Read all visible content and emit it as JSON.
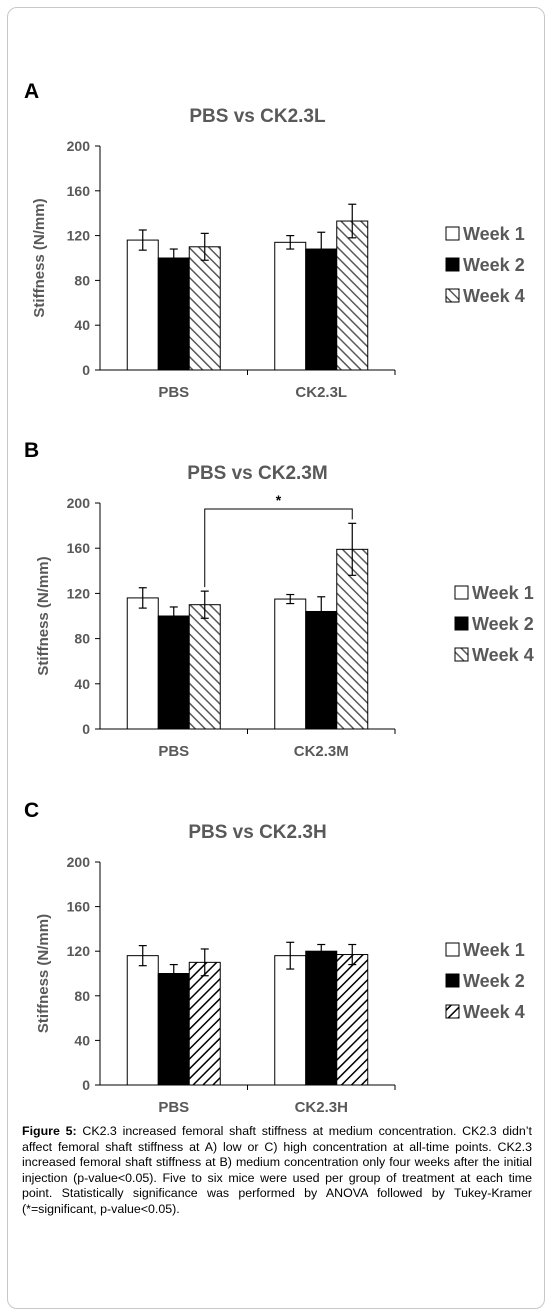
{
  "panels": [
    {
      "letter": "A"
    },
    {
      "letter": "B"
    },
    {
      "letter": "C"
    }
  ],
  "caption": {
    "label": "Figure 5:",
    "text": " CK2.3 increased femoral shaft stiffness at medium concentration. CK2.3 didn’t affect femoral shaft stiffness at A) low or C) high concentration at all-time points. CK2.3 increased femoral shaft stiffness at B) medium concentration only four weeks after the initial injection (p-value<0.05). Five to six mice were used per group of treatment at each time point. Statistically significance was performed by ANOVA followed by Tukey-Kramer (*=significant, p-value<0.05)."
  },
  "colors": {
    "week1": "#ffffff",
    "week2": "#000000",
    "week4_hatch": "#595959",
    "text": "#595959",
    "axis": "#000000"
  },
  "chart_data": [
    {
      "type": "bar",
      "title": "PBS vs CK2.3L",
      "categories": [
        "PBS",
        "CK2.3L"
      ],
      "ylabel": "Stiffness (N/mm)",
      "ylim": [
        0,
        200
      ],
      "yticks": [
        "0",
        "40",
        "80",
        "120",
        "160",
        "200"
      ],
      "legend_placement": "right",
      "series": [
        {
          "name": "Week 1",
          "values": [
            116,
            114
          ],
          "errors": [
            9,
            6
          ],
          "fill": "white"
        },
        {
          "name": "Week 2",
          "values": [
            100,
            108
          ],
          "errors": [
            8,
            15
          ],
          "fill": "black"
        },
        {
          "name": "Week 4",
          "values": [
            110,
            133
          ],
          "errors": [
            12,
            15
          ],
          "fill": "hatch-forward"
        }
      ]
    },
    {
      "type": "bar",
      "title": "PBS vs CK2.3M",
      "categories": [
        "PBS",
        "CK2.3M"
      ],
      "ylabel": "Stiffness (N/mm)",
      "ylim": [
        0,
        200
      ],
      "yticks": [
        "0",
        "40",
        "80",
        "120",
        "160",
        "200"
      ],
      "legend_placement": "right",
      "significance": {
        "label": "*",
        "from": "PBS Week 4",
        "to": "CK2.3M Week 4"
      },
      "series": [
        {
          "name": "Week 1",
          "values": [
            116,
            115
          ],
          "errors": [
            9,
            4
          ],
          "fill": "white"
        },
        {
          "name": "Week 2",
          "values": [
            100,
            104
          ],
          "errors": [
            8,
            13
          ],
          "fill": "black"
        },
        {
          "name": "Week 4",
          "values": [
            110,
            159
          ],
          "errors": [
            12,
            23
          ],
          "fill": "hatch-forward"
        }
      ]
    },
    {
      "type": "bar",
      "title": "PBS vs CK2.3H",
      "categories": [
        "PBS",
        "CK2.3H"
      ],
      "ylabel": "Stiffness (N/mm)",
      "ylim": [
        0,
        200
      ],
      "yticks": [
        "0",
        "40",
        "80",
        "120",
        "160",
        "200"
      ],
      "legend_placement": "right",
      "series": [
        {
          "name": "Week 1",
          "values": [
            116,
            116
          ],
          "errors": [
            9,
            12
          ],
          "fill": "white"
        },
        {
          "name": "Week 2",
          "values": [
            100,
            120
          ],
          "errors": [
            8,
            6
          ],
          "fill": "black"
        },
        {
          "name": "Week 4",
          "values": [
            110,
            117
          ],
          "errors": [
            12,
            9
          ],
          "fill": "hatch-back"
        }
      ]
    }
  ]
}
